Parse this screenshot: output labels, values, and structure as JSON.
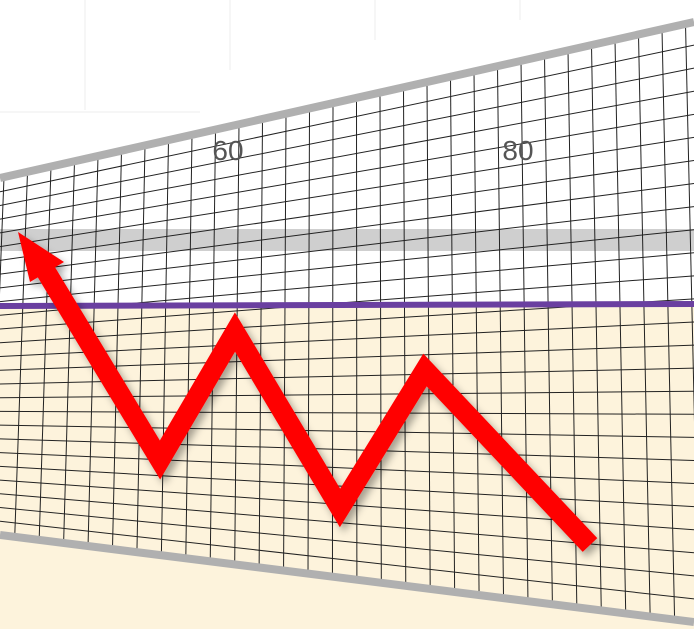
{
  "labels": [
    "60",
    "80"
  ]
}
